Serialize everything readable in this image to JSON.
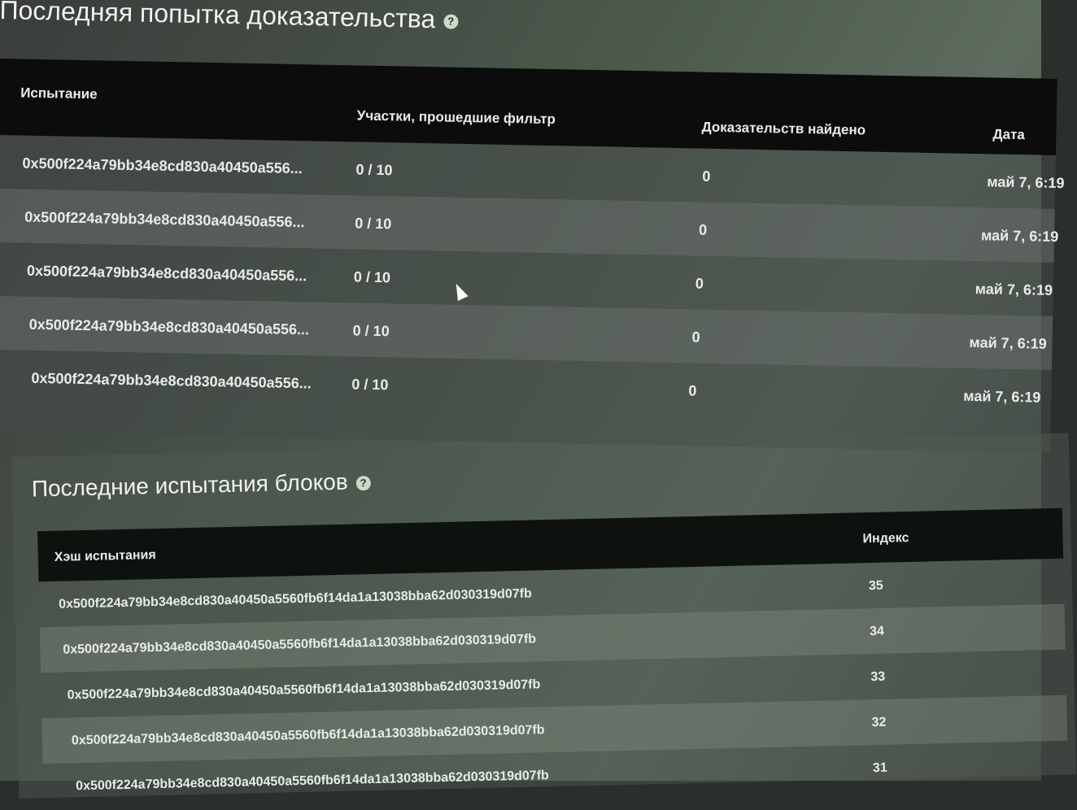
{
  "proofs": {
    "title": "Последняя попытка доказательства",
    "help_icon": "question-circle-icon",
    "columns": [
      "Испытание",
      "Участки, прошедшие фильтр",
      "Доказательств найдено",
      "Дата"
    ],
    "rows": [
      {
        "challenge": "0x500f224a79bb34e8cd830a40450a556...",
        "plots": "0 / 10",
        "proofs": "0",
        "date": "май 7, 6:19"
      },
      {
        "challenge": "0x500f224a79bb34e8cd830a40450a556...",
        "plots": "0 / 10",
        "proofs": "0",
        "date": "май 7, 6:19"
      },
      {
        "challenge": "0x500f224a79bb34e8cd830a40450a556...",
        "plots": "0 / 10",
        "proofs": "0",
        "date": "май 7, 6:19"
      },
      {
        "challenge": "0x500f224a79bb34e8cd830a40450a556...",
        "plots": "0 / 10",
        "proofs": "0",
        "date": "май 7, 6:19"
      },
      {
        "challenge": "0x500f224a79bb34e8cd830a40450a556...",
        "plots": "0 / 10",
        "proofs": "0",
        "date": "май 7, 6:19"
      }
    ]
  },
  "blocks": {
    "title": "Последние испытания блоков",
    "help_icon": "question-circle-icon",
    "columns": [
      "Хэш испытания",
      "Индекс"
    ],
    "rows": [
      {
        "hash": "0x500f224a79bb34e8cd830a40450a5560fb6f14da1a13038bba62d030319d07fb",
        "index": "35"
      },
      {
        "hash": "0x500f224a79bb34e8cd830a40450a5560fb6f14da1a13038bba62d030319d07fb",
        "index": "34"
      },
      {
        "hash": "0x500f224a79bb34e8cd830a40450a5560fb6f14da1a13038bba62d030319d07fb",
        "index": "33"
      },
      {
        "hash": "0x500f224a79bb34e8cd830a40450a5560fb6f14da1a13038bba62d030319d07fb",
        "index": "32"
      },
      {
        "hash": "0x500f224a79bb34e8cd830a40450a5560fb6f14da1a13038bba62d030319d07fb",
        "index": "31"
      }
    ]
  }
}
